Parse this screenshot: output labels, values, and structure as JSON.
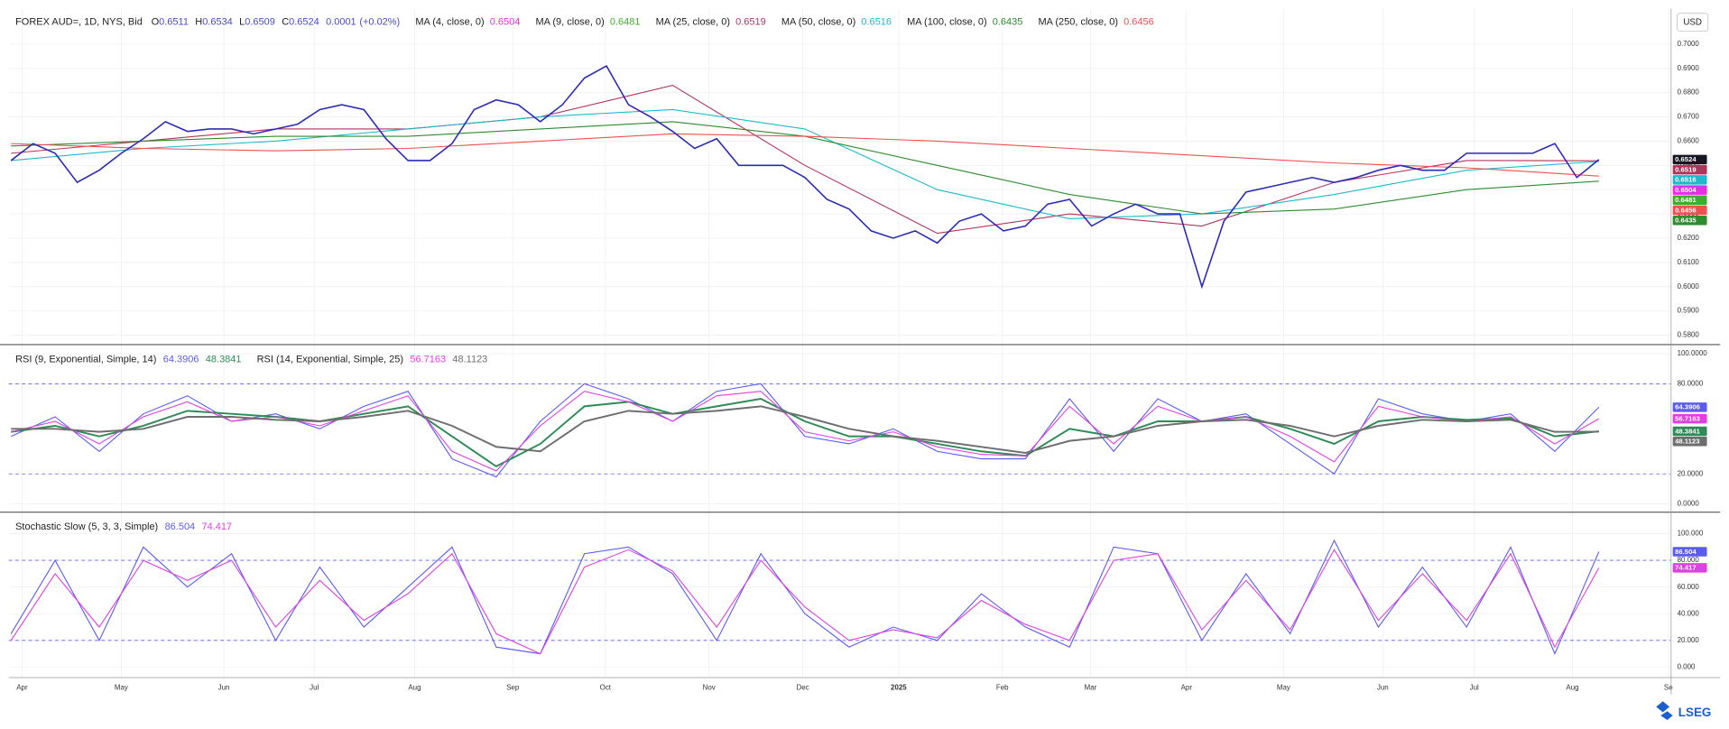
{
  "chart_data": [
    {
      "type": "line",
      "title": "FOREX AUD=, 1D, NYS, Bid",
      "ohlc": [
        {
          "label": "O",
          "value": 0.6511
        },
        {
          "label": "H",
          "value": 0.6534
        },
        {
          "label": "L",
          "value": 0.6509
        },
        {
          "label": "C",
          "value": 0.6524
        }
      ],
      "change": 0.0001,
      "change_label": "(+0.02%)",
      "ylim": [
        0.5768,
        0.7136
      ],
      "yticks": [
        {
          "value": 0.58,
          "label": "0.5800"
        },
        {
          "value": 0.59,
          "label": "0.5900"
        },
        {
          "value": 0.6,
          "label": "0.6000"
        },
        {
          "value": 0.61,
          "label": "0.6100"
        },
        {
          "value": 0.62,
          "label": "0.6200"
        },
        {
          "value": 0.63,
          "label": "0.6300"
        },
        {
          "value": 0.64,
          "label": "0.6400"
        },
        {
          "value": 0.65,
          "label": "0.6500"
        },
        {
          "value": 0.66,
          "label": "0.6600"
        },
        {
          "value": 0.67,
          "label": "0.6700"
        },
        {
          "value": 0.68,
          "label": "0.6800"
        },
        {
          "value": 0.69,
          "label": "0.6900"
        },
        {
          "value": 0.7,
          "label": "0.7000"
        }
      ],
      "price": {
        "color": "#2b2bb8",
        "x": [
          0,
          1,
          2,
          3,
          4,
          5,
          6,
          7,
          8,
          9,
          10,
          11,
          12,
          13,
          14,
          15,
          16,
          17,
          18,
          19,
          20,
          21,
          22,
          23,
          24,
          25,
          26,
          27,
          28,
          29,
          30,
          31,
          32,
          33,
          34,
          35,
          36,
          37,
          38,
          39,
          40,
          41,
          42,
          43,
          44,
          45,
          46,
          47,
          48,
          49,
          50,
          51,
          52,
          53,
          54,
          55,
          56,
          57,
          58,
          59,
          60,
          61,
          62,
          63,
          64,
          65,
          66,
          67,
          68,
          69,
          70,
          71,
          72
        ],
        "values": [
          0.652,
          0.659,
          0.655,
          0.643,
          0.648,
          0.655,
          0.661,
          0.668,
          0.664,
          0.665,
          0.665,
          0.663,
          0.665,
          0.667,
          0.673,
          0.675,
          0.673,
          0.661,
          0.652,
          0.652,
          0.659,
          0.673,
          0.677,
          0.675,
          0.668,
          0.675,
          0.686,
          0.691,
          0.675,
          0.67,
          0.664,
          0.657,
          0.661,
          0.65,
          0.65,
          0.65,
          0.645,
          0.636,
          0.632,
          0.623,
          0.62,
          0.623,
          0.618,
          0.627,
          0.63,
          0.623,
          0.625,
          0.634,
          0.636,
          0.625,
          0.63,
          0.634,
          0.63,
          0.63,
          0.6,
          0.627,
          0.639,
          0.641,
          0.643,
          0.645,
          0.643,
          0.645,
          0.648,
          0.65,
          0.648,
          0.648,
          0.655,
          0.655,
          0.655,
          0.655,
          0.659,
          0.645,
          0.6524
        ]
      },
      "series": [
        {
          "name": "MA (4, close, 0)",
          "color": "#e52ee5",
          "last": 0.6504
        },
        {
          "name": "MA (9, close, 0)",
          "color": "#3fae2a",
          "last": 0.6481
        },
        {
          "name": "MA (25, close, 0)",
          "color": "#b2345a",
          "last": 0.6519,
          "x": [
            0,
            6,
            12,
            18,
            24,
            30,
            36,
            42,
            48,
            54,
            60,
            66,
            72
          ],
          "values": [
            0.655,
            0.66,
            0.665,
            0.665,
            0.67,
            0.683,
            0.65,
            0.622,
            0.63,
            0.625,
            0.643,
            0.652,
            0.6519
          ]
        },
        {
          "name": "MA (50, close, 0)",
          "color": "#1fb8cc",
          "last": 0.6516,
          "x": [
            0,
            6,
            12,
            18,
            24,
            30,
            36,
            42,
            48,
            54,
            60,
            66,
            72
          ],
          "values": [
            0.652,
            0.657,
            0.66,
            0.665,
            0.67,
            0.673,
            0.665,
            0.64,
            0.628,
            0.63,
            0.638,
            0.648,
            0.6516
          ]
        },
        {
          "name": "MA (100, close, 0)",
          "color": "#2e8b2e",
          "last": 0.6435,
          "x": [
            0,
            6,
            12,
            18,
            24,
            30,
            36,
            42,
            48,
            54,
            60,
            66,
            72
          ],
          "values": [
            0.658,
            0.66,
            0.662,
            0.662,
            0.665,
            0.668,
            0.662,
            0.65,
            0.638,
            0.63,
            0.632,
            0.64,
            0.6435
          ]
        },
        {
          "name": "MA (250, close, 0)",
          "color": "#f05050",
          "last": 0.6456,
          "x": [
            0,
            6,
            12,
            18,
            24,
            30,
            36,
            42,
            48,
            54,
            60,
            66,
            72
          ],
          "values": [
            0.659,
            0.657,
            0.656,
            0.657,
            0.66,
            0.663,
            0.662,
            0.66,
            0.657,
            0.654,
            0.651,
            0.649,
            0.6456
          ]
        }
      ]
    },
    {
      "type": "line",
      "ylim": [
        -4.4,
        105
      ],
      "yticks": [
        {
          "value": 0,
          "label": "0.0000"
        },
        {
          "value": 20,
          "label": "20.0000"
        },
        {
          "value": 80,
          "label": "80.0000"
        },
        {
          "value": 100,
          "label": "100.0000"
        }
      ],
      "levels": [
        20,
        80
      ],
      "indicators": [
        {
          "name": "RSI (9, Exponential, Simple, 14)",
          "lines": [
            {
              "color": "#5b5bf0",
              "x": [
                0,
                2,
                4,
                6,
                8,
                10,
                12,
                14,
                16,
                18,
                20,
                22,
                24,
                26,
                28,
                30,
                32,
                34,
                36,
                38,
                40,
                42,
                44,
                46,
                48,
                50,
                52,
                54,
                56,
                58,
                60,
                62,
                64,
                66,
                68,
                70,
                72
              ],
              "values": [
                45,
                58,
                35,
                60,
                72,
                55,
                60,
                50,
                65,
                75,
                30,
                18,
                55,
                80,
                70,
                55,
                75,
                80,
                45,
                40,
                50,
                35,
                30,
                30,
                70,
                35,
                70,
                55,
                60,
                40,
                20,
                70,
                60,
                55,
                60,
                35,
                64.3906
              ]
            },
            {
              "color": "#2e8b57",
              "x": [
                0,
                2,
                4,
                6,
                8,
                10,
                12,
                14,
                16,
                18,
                20,
                22,
                24,
                26,
                28,
                30,
                32,
                34,
                36,
                38,
                40,
                42,
                44,
                46,
                48,
                50,
                52,
                54,
                56,
                58,
                60,
                62,
                64,
                66,
                68,
                70,
                72
              ],
              "values": [
                48,
                52,
                45,
                52,
                62,
                60,
                58,
                55,
                60,
                65,
                45,
                25,
                40,
                65,
                68,
                60,
                65,
                70,
                55,
                45,
                45,
                40,
                35,
                32,
                50,
                45,
                55,
                55,
                58,
                50,
                40,
                55,
                58,
                56,
                57,
                45,
                48.3841
              ]
            }
          ]
        },
        {
          "name": "RSI (14, Exponential, Simple, 25)",
          "lines": [
            {
              "color": "#e040e0",
              "x": [
                0,
                2,
                4,
                6,
                8,
                10,
                12,
                14,
                16,
                18,
                20,
                22,
                24,
                26,
                28,
                30,
                32,
                34,
                36,
                38,
                40,
                42,
                44,
                46,
                48,
                50,
                52,
                54,
                56,
                58,
                60,
                62,
                64,
                66,
                68,
                70,
                72
              ],
              "values": [
                48,
                55,
                40,
                58,
                68,
                55,
                58,
                52,
                62,
                72,
                35,
                22,
                52,
                75,
                68,
                55,
                72,
                75,
                48,
                42,
                48,
                38,
                33,
                32,
                65,
                40,
                65,
                55,
                58,
                45,
                28,
                65,
                58,
                55,
                58,
                40,
                56.7163
              ]
            },
            {
              "color": "#6e6e6e",
              "x": [
                0,
                2,
                4,
                6,
                8,
                10,
                12,
                14,
                16,
                18,
                20,
                22,
                24,
                26,
                28,
                30,
                32,
                34,
                36,
                38,
                40,
                42,
                44,
                46,
                48,
                50,
                52,
                54,
                56,
                58,
                60,
                62,
                64,
                66,
                68,
                70,
                72
              ],
              "values": [
                50,
                50,
                48,
                50,
                58,
                58,
                56,
                55,
                58,
                62,
                52,
                38,
                35,
                55,
                62,
                60,
                62,
                65,
                58,
                50,
                45,
                42,
                38,
                34,
                42,
                45,
                52,
                55,
                56,
                52,
                45,
                52,
                56,
                55,
                56,
                48,
                48.1123
              ]
            }
          ]
        }
      ]
    },
    {
      "type": "line",
      "ylim": [
        -6.6,
        114.9
      ],
      "yticks": [
        {
          "value": 0,
          "label": "0.000"
        },
        {
          "value": 20,
          "label": "20.000"
        },
        {
          "value": 40,
          "label": "40.000"
        },
        {
          "value": 60,
          "label": "60.000"
        },
        {
          "value": 80,
          "label": "80.000"
        },
        {
          "value": 100,
          "label": "100.000"
        }
      ],
      "levels": [
        20,
        80
      ],
      "indicators": [
        {
          "name": "Stochastic Slow (5, 3, 3, Simple)",
          "lines": [
            {
              "color": "#5b5bf0",
              "x": [
                0,
                2,
                4,
                6,
                8,
                10,
                12,
                14,
                16,
                18,
                20,
                22,
                24,
                26,
                28,
                30,
                32,
                34,
                36,
                38,
                40,
                42,
                44,
                46,
                48,
                50,
                52,
                54,
                56,
                58,
                60,
                62,
                64,
                66,
                68,
                70,
                72
              ],
              "values": [
                25,
                80,
                20,
                90,
                60,
                85,
                20,
                75,
                30,
                60,
                90,
                15,
                10,
                85,
                90,
                70,
                20,
                85,
                40,
                15,
                30,
                20,
                55,
                30,
                15,
                90,
                85,
                20,
                70,
                25,
                95,
                30,
                75,
                30,
                90,
                10,
                86.504
              ]
            },
            {
              "color": "#e040e0",
              "x": [
                0,
                2,
                4,
                6,
                8,
                10,
                12,
                14,
                16,
                18,
                20,
                22,
                24,
                26,
                28,
                30,
                32,
                34,
                36,
                38,
                40,
                42,
                44,
                46,
                48,
                50,
                52,
                54,
                56,
                58,
                60,
                62,
                64,
                66,
                68,
                70,
                72
              ],
              "values": [
                20,
                70,
                30,
                80,
                65,
                80,
                30,
                65,
                35,
                55,
                85,
                25,
                10,
                75,
                88,
                72,
                30,
                80,
                45,
                20,
                28,
                22,
                50,
                32,
                20,
                80,
                85,
                28,
                65,
                28,
                88,
                35,
                70,
                35,
                85,
                15,
                74.417
              ]
            }
          ]
        }
      ]
    }
  ],
  "x_axis": {
    "xlim": [
      -0.1,
      75.25
    ],
    "xticks": [
      {
        "value": 0.5,
        "label": "Apr"
      },
      {
        "value": 5,
        "label": "May"
      },
      {
        "value": 9.65,
        "label": "Jun"
      },
      {
        "value": 13.75,
        "label": "Jul"
      },
      {
        "value": 18.3,
        "label": "Aug"
      },
      {
        "value": 22.75,
        "label": "Sep"
      },
      {
        "value": 26.95,
        "label": "Oct"
      },
      {
        "value": 31.65,
        "label": "Nov"
      },
      {
        "value": 35.9,
        "label": "Dec"
      },
      {
        "value": 40.25,
        "label": "2025"
      },
      {
        "value": 44.95,
        "label": "Feb"
      },
      {
        "value": 48.95,
        "label": "Mar"
      },
      {
        "value": 53.3,
        "label": "Apr"
      },
      {
        "value": 57.7,
        "label": "May"
      },
      {
        "value": 62.2,
        "label": "Jun"
      },
      {
        "value": 66.35,
        "label": "Jul"
      },
      {
        "value": 70.8,
        "label": "Aug"
      },
      {
        "value": 75.15,
        "label": "Se"
      }
    ]
  },
  "currency": "USD",
  "logo": "LSEG"
}
